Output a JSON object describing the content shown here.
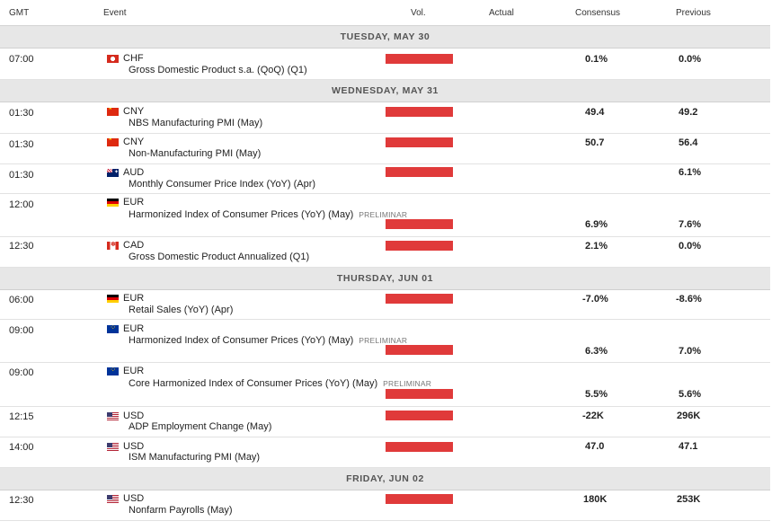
{
  "header": {
    "gmt": "GMT",
    "event": "Event",
    "vol": "Vol.",
    "actual": "Actual",
    "consensus": "Consensus",
    "previous": "Previous"
  },
  "days": [
    "TUESDAY, MAY 30",
    "WEDNESDAY, MAY 31",
    "THURSDAY, JUN 01",
    "FRIDAY, JUN 02"
  ],
  "events": [
    {
      "time": "07:00",
      "currency": "CHF",
      "flag": "switzerland-flag-icon",
      "name": "Gross Domestic Product s.a. (QoQ) (Q1)",
      "tag": "",
      "volatility": "high",
      "actual": "",
      "consensus": "0.1%",
      "previous": "0.0%"
    },
    {
      "time": "01:30",
      "currency": "CNY",
      "flag": "china-flag-icon",
      "name": "NBS Manufacturing PMI (May)",
      "tag": "",
      "volatility": "high",
      "actual": "",
      "consensus": "49.4",
      "previous": "49.2"
    },
    {
      "time": "01:30",
      "currency": "CNY",
      "flag": "china-flag-icon",
      "name": "Non-Manufacturing PMI (May)",
      "tag": "",
      "volatility": "high",
      "actual": "",
      "consensus": "50.7",
      "previous": "56.4"
    },
    {
      "time": "01:30",
      "currency": "AUD",
      "flag": "australia-flag-icon",
      "name": "Monthly Consumer Price Index (YoY) (Apr)",
      "tag": "",
      "volatility": "high",
      "actual": "",
      "consensus": "",
      "previous": "6.1%"
    },
    {
      "time": "12:00",
      "currency": "EUR",
      "flag": "germany-flag-icon",
      "name": "Harmonized Index of Consumer Prices (YoY) (May)",
      "tag": "PRELIMINAR",
      "volatility": "high",
      "actual": "",
      "consensus": "6.9%",
      "previous": "7.6%"
    },
    {
      "time": "12:30",
      "currency": "CAD",
      "flag": "canada-flag-icon",
      "name": "Gross Domestic Product Annualized (Q1)",
      "tag": "",
      "volatility": "high",
      "actual": "",
      "consensus": "2.1%",
      "previous": "0.0%"
    },
    {
      "time": "06:00",
      "currency": "EUR",
      "flag": "germany-flag-icon",
      "name": "Retail Sales (YoY) (Apr)",
      "tag": "",
      "volatility": "high",
      "actual": "",
      "consensus": "-7.0%",
      "previous": "-8.6%"
    },
    {
      "time": "09:00",
      "currency": "EUR",
      "flag": "eu-flag-icon",
      "name": "Harmonized Index of Consumer Prices (YoY) (May)",
      "tag": "PRELIMINAR",
      "volatility": "high",
      "actual": "",
      "consensus": "6.3%",
      "previous": "7.0%"
    },
    {
      "time": "09:00",
      "currency": "EUR",
      "flag": "eu-flag-icon",
      "name": "Core Harmonized Index of Consumer Prices (YoY) (May)",
      "tag": "PRELIMINAR",
      "volatility": "high",
      "actual": "",
      "consensus": "5.5%",
      "previous": "5.6%"
    },
    {
      "time": "12:15",
      "currency": "USD",
      "flag": "usa-flag-icon",
      "name": "ADP Employment Change (May)",
      "tag": "",
      "volatility": "high",
      "actual": "",
      "consensus": "-22K",
      "previous": "296K"
    },
    {
      "time": "14:00",
      "currency": "USD",
      "flag": "usa-flag-icon",
      "name": "ISM Manufacturing PMI (May)",
      "tag": "",
      "volatility": "high",
      "actual": "",
      "consensus": "47.0",
      "previous": "47.1"
    },
    {
      "time": "12:30",
      "currency": "USD",
      "flag": "usa-flag-icon",
      "name": "Nonfarm Payrolls (May)",
      "tag": "",
      "volatility": "high",
      "actual": "",
      "consensus": "180K",
      "previous": "253K"
    }
  ],
  "colors": {
    "volatility_high": "#e03a3a",
    "day_band": "#e7e7e7"
  }
}
